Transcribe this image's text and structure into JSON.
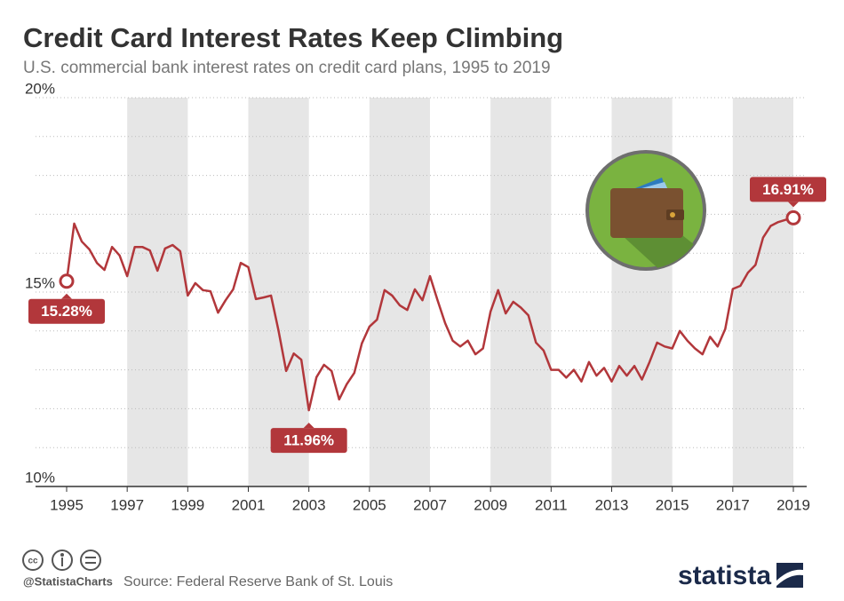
{
  "chart_data": {
    "type": "line",
    "title": "Credit Card Interest Rates Keep Climbing",
    "subtitle": "U.S. commercial bank interest rates on credit card plans, 1995 to 2019",
    "source": "Source: Federal Reserve Bank of St. Louis",
    "handle": "@StatistaCharts",
    "brand": "statista",
    "x": [
      1995,
      1995.25,
      1995.5,
      1995.75,
      1996,
      1996.25,
      1996.5,
      1996.75,
      1997,
      1997.25,
      1997.5,
      1997.75,
      1998,
      1998.25,
      1998.5,
      1998.75,
      1999,
      1999.25,
      1999.5,
      1999.75,
      2000,
      2000.25,
      2000.5,
      2000.75,
      2001,
      2001.25,
      2001.5,
      2001.75,
      2002,
      2002.25,
      2002.5,
      2002.75,
      2003,
      2003.25,
      2003.5,
      2003.75,
      2004,
      2004.25,
      2004.5,
      2004.75,
      2005,
      2005.25,
      2005.5,
      2005.75,
      2006,
      2006.25,
      2006.5,
      2006.75,
      2007,
      2007.25,
      2007.5,
      2007.75,
      2008,
      2008.25,
      2008.5,
      2008.75,
      2009,
      2009.25,
      2009.5,
      2009.75,
      2010,
      2010.25,
      2010.5,
      2010.75,
      2011,
      2011.25,
      2011.5,
      2011.75,
      2012,
      2012.25,
      2012.5,
      2012.75,
      2013,
      2013.25,
      2013.5,
      2013.75,
      2014,
      2014.25,
      2014.5,
      2014.75,
      2015,
      2015.25,
      2015.5,
      2015.75,
      2016,
      2016.25,
      2016.5,
      2016.75,
      2017,
      2017.25,
      2017.5,
      2017.75,
      2018,
      2018.25,
      2018.5,
      2018.75,
      2019
    ],
    "series": [
      {
        "name": "Interest rate",
        "color": "#b2373b",
        "values": [
          15.28,
          16.76,
          16.3,
          16.1,
          15.75,
          15.57,
          16.16,
          15.94,
          15.41,
          16.16,
          16.16,
          16.07,
          15.55,
          16.12,
          16.21,
          16.05,
          14.91,
          15.23,
          15.05,
          15.02,
          14.47,
          14.79,
          15.07,
          15.75,
          15.64,
          14.82,
          14.86,
          14.91,
          14.0,
          12.97,
          13.42,
          13.26,
          11.96,
          12.81,
          13.13,
          12.97,
          12.24,
          12.63,
          12.92,
          13.68,
          14.11,
          14.29,
          15.05,
          14.91,
          14.66,
          14.54,
          15.07,
          14.79,
          15.41,
          14.79,
          14.2,
          13.75,
          13.6,
          13.75,
          13.4,
          13.55,
          14.5,
          15.05,
          14.45,
          14.75,
          14.6,
          14.4,
          13.7,
          13.5,
          13.0,
          13.0,
          12.8,
          13.0,
          12.7,
          13.2,
          12.85,
          13.05,
          12.7,
          13.1,
          12.85,
          13.1,
          12.75,
          13.2,
          13.7,
          13.6,
          13.55,
          14.0,
          13.75,
          13.55,
          13.4,
          13.85,
          13.6,
          14.05,
          15.08,
          15.16,
          15.5,
          15.7,
          16.4,
          16.7,
          16.8,
          16.86,
          16.91
        ],
        "value_labels": [
          "15.28%",
          null,
          null,
          null,
          null,
          null,
          null,
          null,
          null,
          null,
          null,
          null,
          null,
          null,
          null,
          null,
          null,
          null,
          null,
          null,
          null,
          null,
          null,
          null,
          null,
          null,
          null,
          null,
          null,
          null,
          null,
          null,
          "11.96%",
          null,
          null,
          null,
          null,
          null,
          null,
          null,
          null,
          null,
          null,
          null,
          null,
          null,
          null,
          null,
          null,
          null,
          null,
          null,
          null,
          null,
          null,
          null,
          null,
          null,
          null,
          null,
          null,
          null,
          null,
          null,
          null,
          null,
          null,
          null,
          null,
          null,
          null,
          null,
          null,
          null,
          null,
          null,
          null,
          null,
          null,
          null,
          null,
          null,
          null,
          null,
          null,
          null,
          null,
          null,
          null,
          null,
          null,
          null,
          null,
          null,
          null,
          null,
          "16.91%"
        ]
      }
    ],
    "xlim": [
      1995,
      2019
    ],
    "xticks": [
      1995,
      1997,
      1999,
      2001,
      2003,
      2005,
      2007,
      2009,
      2011,
      2013,
      2015,
      2017,
      2019
    ],
    "ylim": [
      10,
      20
    ],
    "yticks": [
      {
        "value": 10,
        "label": "10%"
      },
      {
        "value": 15,
        "label": "15%"
      },
      {
        "value": 20,
        "label": "20%"
      }
    ],
    "minor_yticks": [
      11,
      12,
      13,
      14,
      16,
      17,
      18,
      19
    ],
    "shaded_bands": [
      [
        1997,
        1999
      ],
      [
        2001,
        2003
      ],
      [
        2005,
        2007
      ],
      [
        2009,
        2011
      ],
      [
        2013,
        2015
      ],
      [
        2017,
        2019
      ]
    ],
    "band_color": "#e6e6e6",
    "grid": true
  }
}
